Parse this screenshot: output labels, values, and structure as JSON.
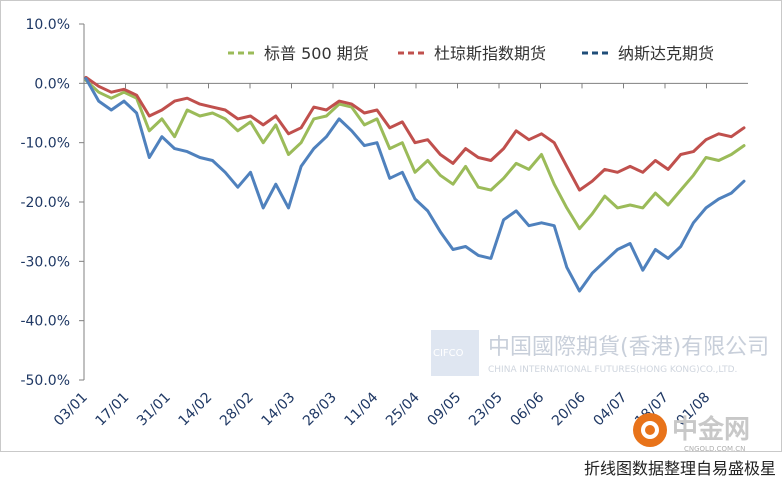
{
  "chart_data": {
    "type": "line",
    "title": "",
    "xlabel": "",
    "ylabel": "",
    "ylim": [
      -50,
      10
    ],
    "yticks": [
      "10.0%",
      "0.0%",
      "-10.0%",
      "-20.0%",
      "-30.0%",
      "-40.0%",
      "-50.0%"
    ],
    "ytick_values": [
      10,
      0,
      -10,
      -20,
      -30,
      -40,
      -50
    ],
    "xticks": [
      "03/01",
      "17/01",
      "31/01",
      "14/02",
      "28/02",
      "14/03",
      "28/03",
      "11/04",
      "25/04",
      "09/05",
      "23/05",
      "06/06",
      "20/06",
      "04/07",
      "18/07",
      "01/08"
    ],
    "legend_position": "top-right",
    "series": [
      {
        "name": "标普 500 期货",
        "color": "#9bbb59",
        "values": [
          0.5,
          -1.5,
          -2.5,
          -1.5,
          -2.5,
          -8.0,
          -6.0,
          -9.0,
          -4.5,
          -5.5,
          -5.0,
          -6.0,
          -8.0,
          -6.5,
          -10.0,
          -7.0,
          -12.0,
          -10.0,
          -6.0,
          -5.5,
          -3.5,
          -4.0,
          -7.0,
          -6.0,
          -11.0,
          -10.0,
          -15.0,
          -13.0,
          -15.5,
          -17.0,
          -14.0,
          -17.5,
          -18.0,
          -16.0,
          -13.5,
          -14.5,
          -12.0,
          -17.0,
          -21.0,
          -24.5,
          -22.0,
          -19.0,
          -21.0,
          -20.5,
          -21.0,
          -18.5,
          -20.5,
          -18.0,
          -15.5,
          -12.5,
          -13.0,
          -12.0,
          -10.5
        ]
      },
      {
        "name": "杜琼斯指数期货",
        "color": "#c0504d",
        "values": [
          1.0,
          -0.5,
          -1.5,
          -1.0,
          -2.0,
          -5.5,
          -4.5,
          -3.0,
          -2.5,
          -3.5,
          -4.0,
          -4.5,
          -6.0,
          -5.5,
          -7.0,
          -5.5,
          -8.5,
          -7.5,
          -4.0,
          -4.5,
          -3.0,
          -3.5,
          -5.0,
          -4.5,
          -7.5,
          -6.5,
          -10.0,
          -9.5,
          -12.0,
          -13.5,
          -11.0,
          -12.5,
          -13.0,
          -11.0,
          -8.0,
          -9.5,
          -8.5,
          -10.0,
          -14.0,
          -18.0,
          -16.5,
          -14.5,
          -15.0,
          -14.0,
          -15.0,
          -13.0,
          -14.5,
          -12.0,
          -11.5,
          -9.5,
          -8.5,
          -9.0,
          -7.5
        ]
      },
      {
        "name": "纳斯达克期货",
        "color": "#4f81bd",
        "values": [
          0.8,
          -3.0,
          -4.5,
          -3.0,
          -5.0,
          -12.5,
          -9.0,
          -11.0,
          -11.5,
          -12.5,
          -13.0,
          -15.0,
          -17.5,
          -15.0,
          -21.0,
          -17.0,
          -21.0,
          -14.0,
          -11.0,
          -9.0,
          -6.0,
          -8.0,
          -10.5,
          -10.0,
          -16.0,
          -15.0,
          -19.5,
          -21.5,
          -25.0,
          -28.0,
          -27.5,
          -29.0,
          -29.5,
          -23.0,
          -21.5,
          -24.0,
          -23.5,
          -24.0,
          -31.0,
          -35.0,
          -32.0,
          -30.0,
          -28.0,
          -27.0,
          -31.5,
          -28.0,
          -29.5,
          -27.5,
          -23.5,
          -21.0,
          -19.5,
          -18.5,
          -16.5
        ]
      }
    ]
  },
  "watermark": {
    "logo_text": "CIFCO",
    "company_cn": "中国國際期貨(香港)有限公司",
    "company_en": "CHINA INTERNATIONAL FUTURES(HONG KONG)CO.,LTD."
  },
  "badge": {
    "brand_cn": "中金网",
    "domain": "CNGOLD.COM.CN"
  },
  "caption": "折线图数据整理自易盛极星",
  "colors": {
    "axis": "#808080",
    "tick_text": "#1f3864"
  }
}
